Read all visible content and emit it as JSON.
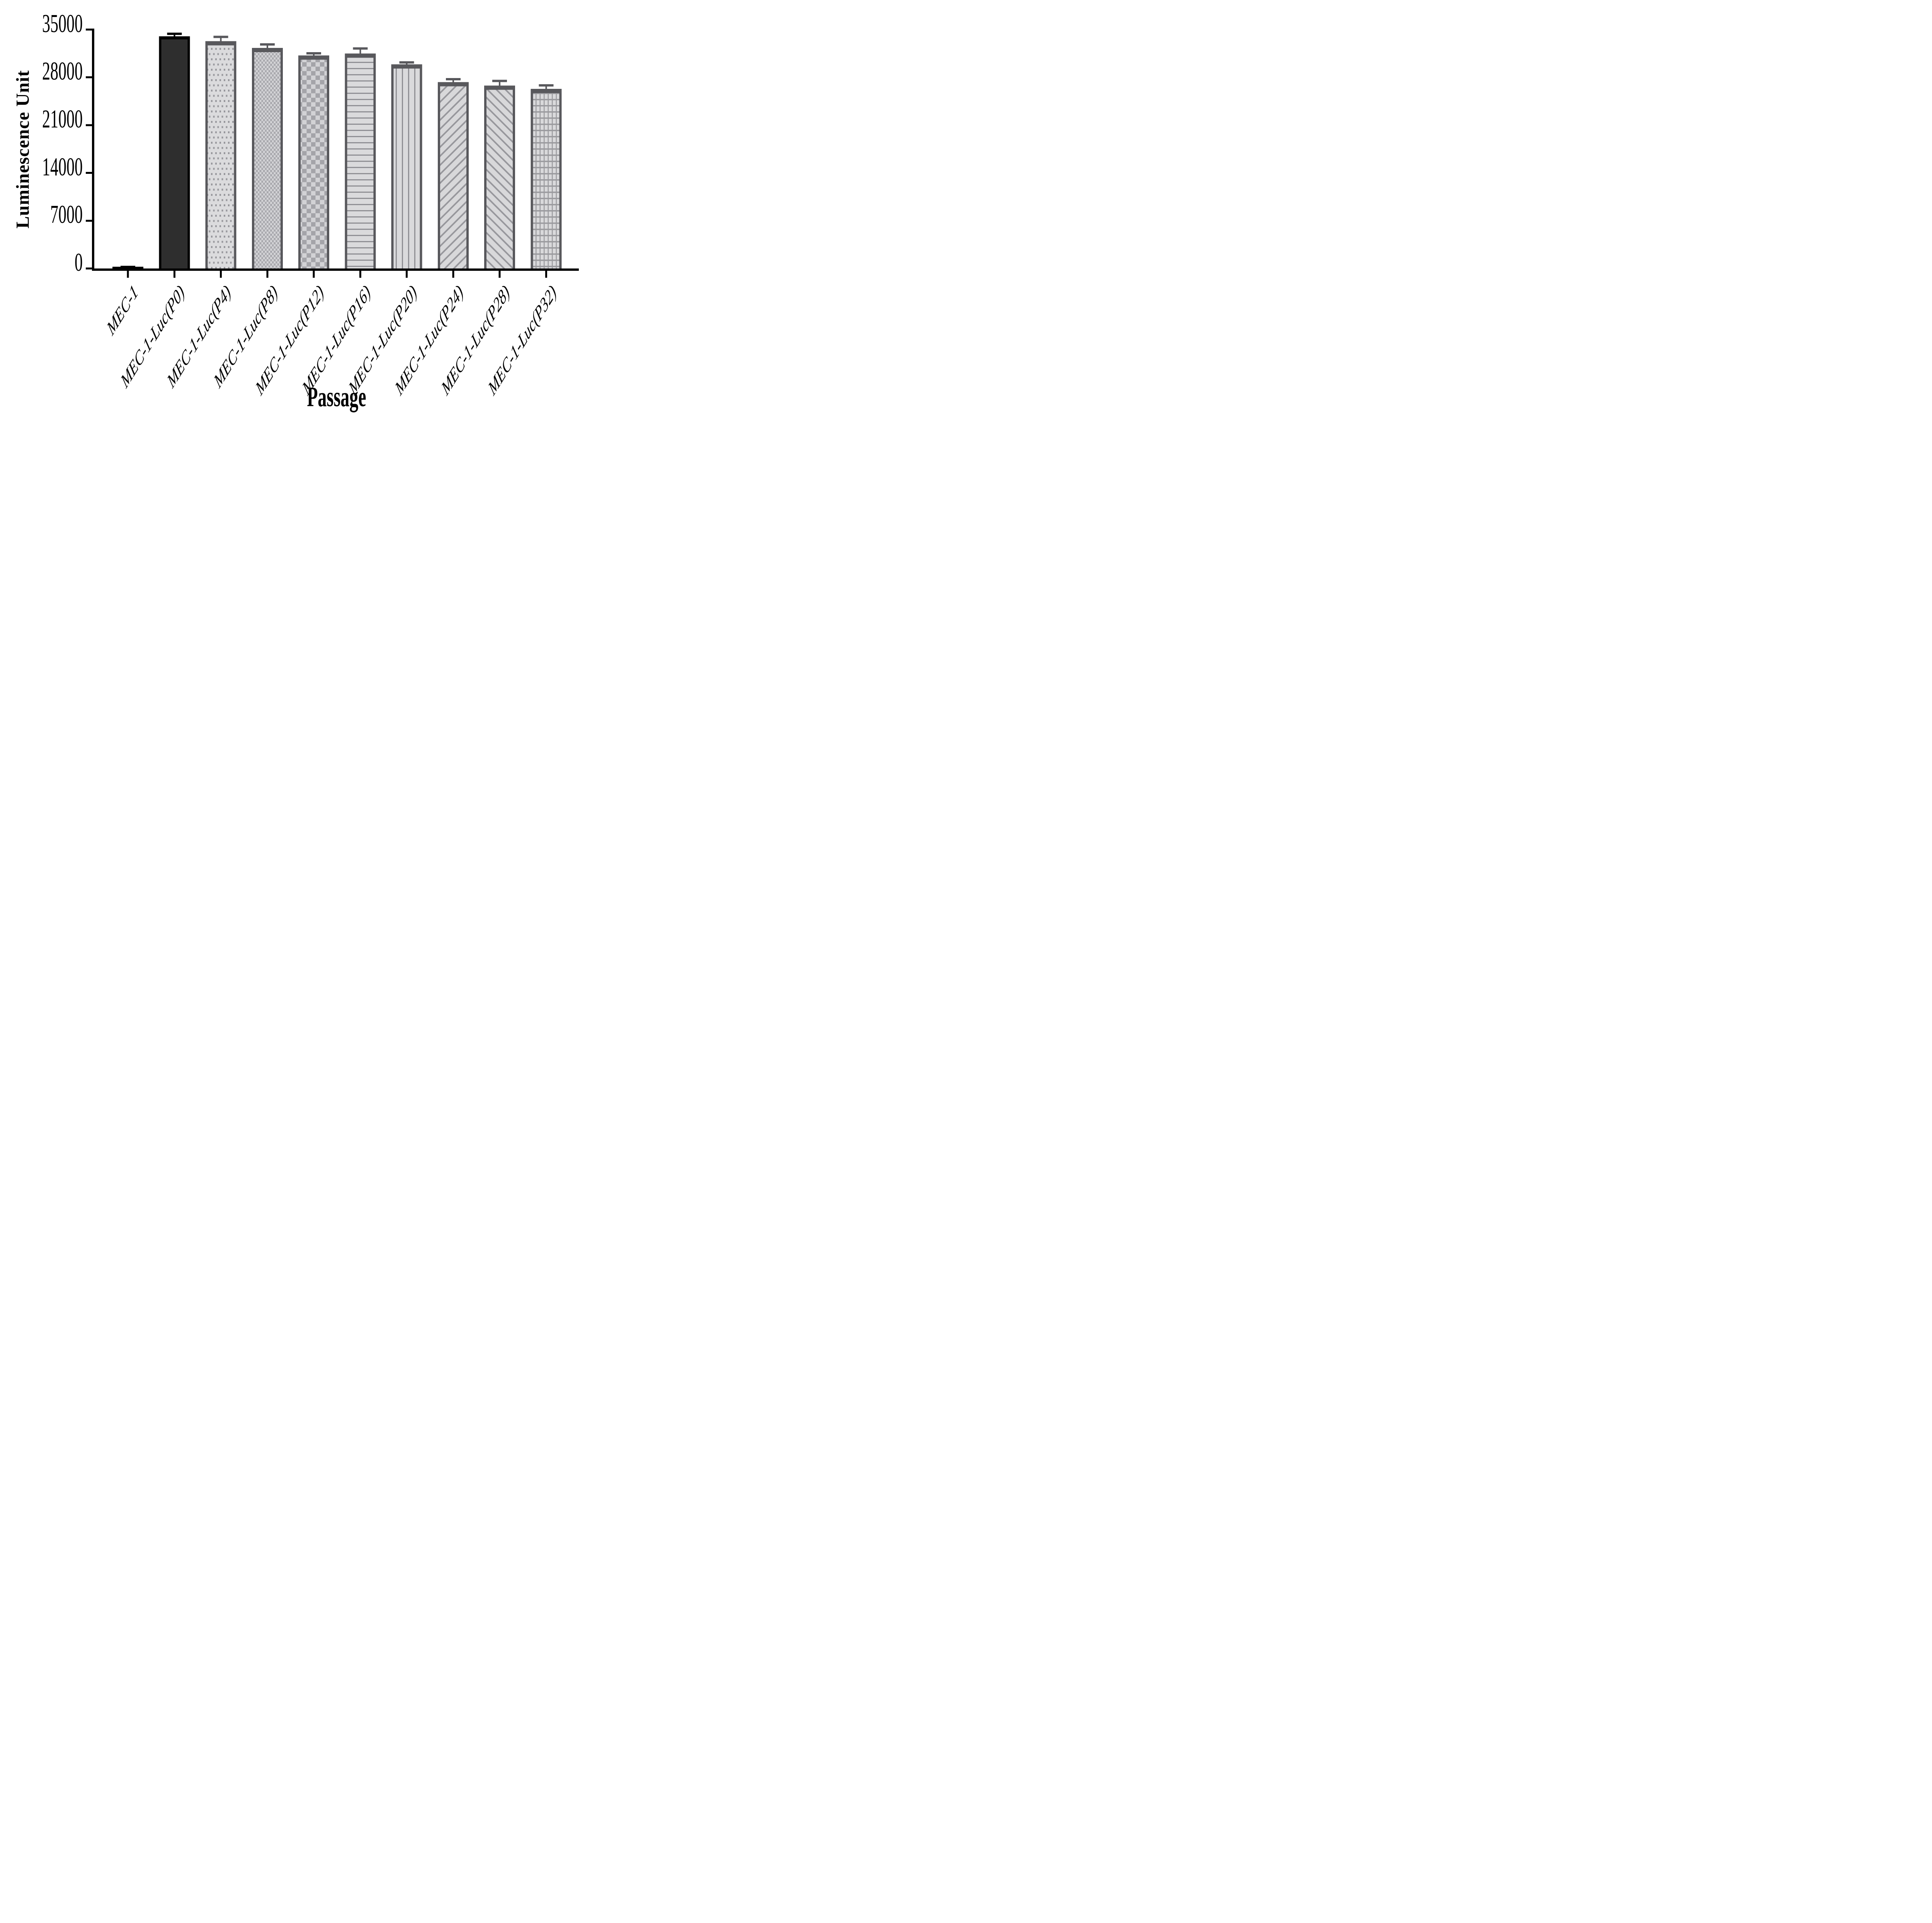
{
  "page": {
    "background": "#ffffff"
  },
  "axes": {
    "y_title": "Luminescence Unit",
    "x_title": "Passage",
    "axis_color": "#000000"
  },
  "chart_data": {
    "type": "bar",
    "title": "",
    "ylabel": "Luminescence Unit",
    "xlabel": "Passage",
    "ylim": [
      0,
      35000
    ],
    "yticks": [
      0,
      7000,
      14000,
      21000,
      28000,
      35000
    ],
    "grid": false,
    "legend": null,
    "categories": [
      "MEC-1",
      "MEC-1-Luc(P0)",
      "MEC-1-Luc(P4)",
      "MEC-1-Luc(P8)",
      "MEC-1-Luc(P12)",
      "MEC-1-Luc(P16)",
      "MEC-1-Luc(P20)",
      "MEC-1-Luc(P24)",
      "MEC-1-Luc(P28)",
      "MEC-1-Luc(P32)"
    ],
    "series": [
      {
        "name": "Luminescence Unit",
        "values": [
          250,
          34000,
          33300,
          32300,
          31200,
          31500,
          29900,
          27300,
          26800,
          26300
        ],
        "errors_plus": [
          150,
          550,
          800,
          700,
          500,
          900,
          450,
          600,
          850,
          700
        ]
      }
    ],
    "bar_patterns": [
      "solid-black",
      "solid-dark",
      "dots",
      "checker-small",
      "checker-large",
      "hlines",
      "vlines",
      "diag-up",
      "diag-down",
      "grid-squares"
    ]
  },
  "style": {
    "axis_color": "#000000",
    "bar_border": "#58585c",
    "black_fill": "#000000",
    "dark_fill": "#2e2e2e",
    "light_fill": "#d8d8da",
    "pattern_fg": "#97979c",
    "dots_fg": "#98989d",
    "dots_bg": "#dbdbdd",
    "checker_small_fg": "#a8a8ad",
    "checker_small_bg": "#d4d4d7",
    "checker_large_fg": "#a4a4a9",
    "checker_large_bg": "#d2d2d5",
    "lines_fg": "#909095",
    "lines_bg": "#dadadc",
    "diag_fg": "#97979c",
    "diag_bg": "#d8d8da",
    "grid_fg": "#9a9a9e",
    "grid_bg": "#d9d9db",
    "error_gray": "#58585c",
    "error_black": "#000000"
  }
}
